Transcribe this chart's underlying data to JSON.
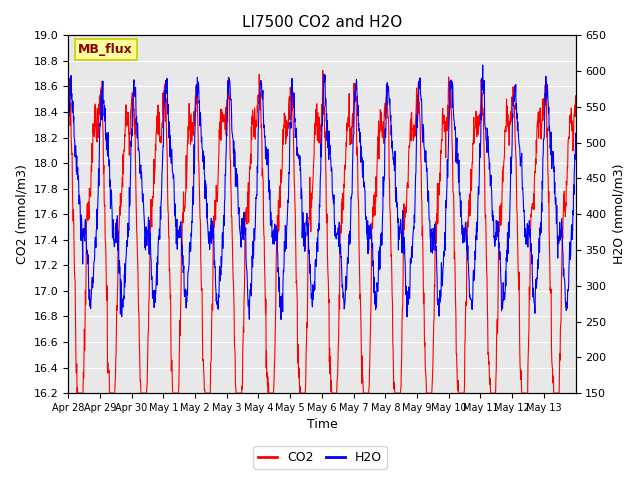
{
  "title": "LI7500 CO2 and H2O",
  "xlabel": "Time",
  "ylabel_left": "CO2 (mmol/m3)",
  "ylabel_right": "H2O (mmol/m3)",
  "ylim_left": [
    16.2,
    19.0
  ],
  "ylim_right": [
    150,
    650
  ],
  "yticks_left": [
    16.2,
    16.4,
    16.6,
    16.8,
    17.0,
    17.2,
    17.4,
    17.6,
    17.8,
    18.0,
    18.2,
    18.4,
    18.6,
    18.8,
    19.0
  ],
  "yticks_right": [
    150,
    200,
    250,
    300,
    350,
    400,
    450,
    500,
    550,
    600,
    650
  ],
  "xtick_labels": [
    "Apr 28",
    "Apr 29",
    "Apr 30",
    "May 1",
    "May 2",
    "May 3",
    "May 4",
    "May 5",
    "May 6",
    "May 7",
    "May 8",
    "May 9",
    "May 10",
    "May 11",
    "May 12",
    "May 13"
  ],
  "co2_color": "#FF0000",
  "h2o_color": "#0000FF",
  "background_color": "#FFFFFF",
  "plot_bg_color": "#E8E8E8",
  "grid_color": "#FFFFFF",
  "annotation_text": "MB_flux",
  "annotation_bg": "#FFFF99",
  "annotation_border": "#CCCC00"
}
